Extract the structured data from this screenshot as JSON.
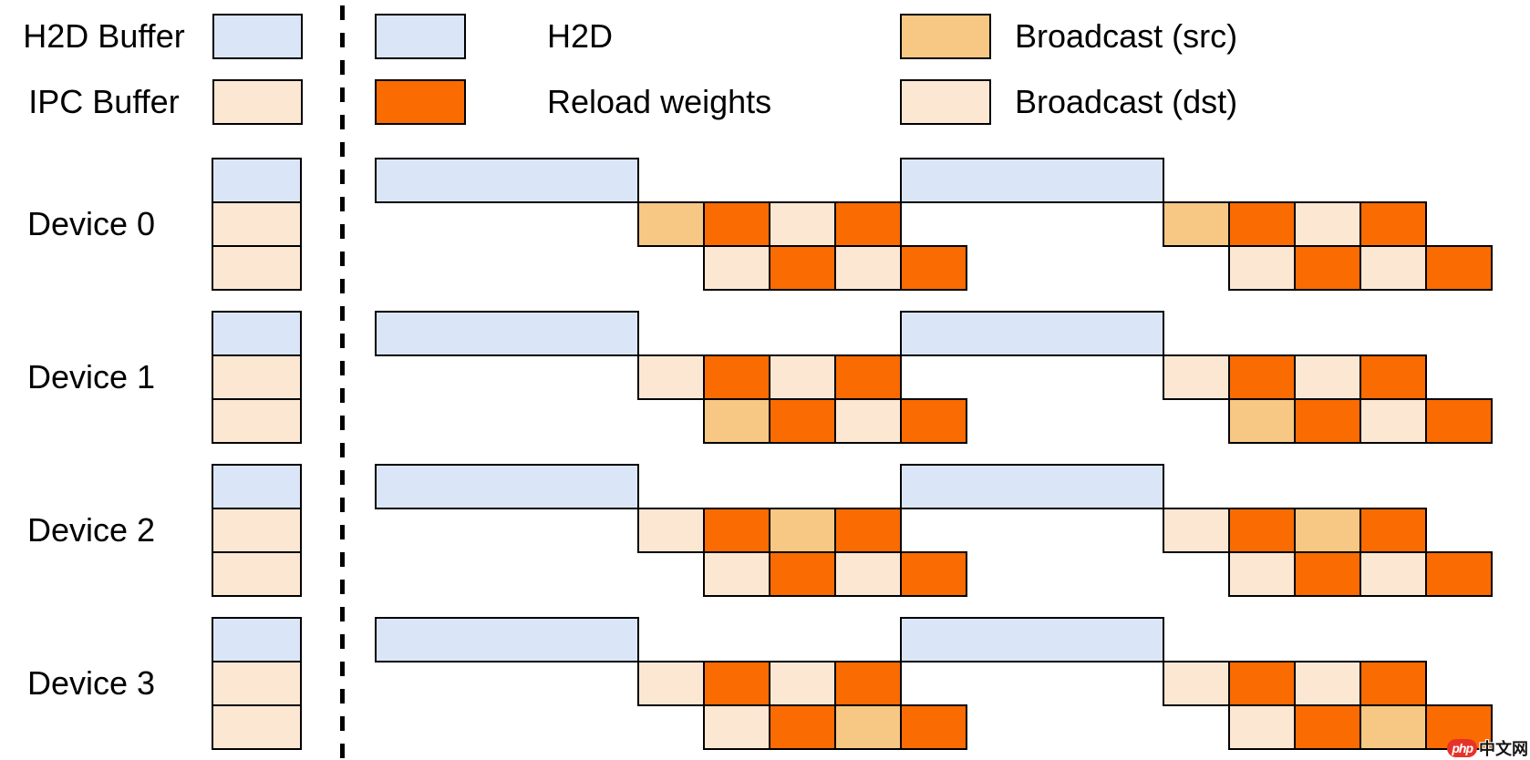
{
  "colors": {
    "h2d": "#dae6f7",
    "ipc": "#fce7d3",
    "reload": "#fa6b02",
    "broadcast_src": "#f7c784",
    "broadcast_dst": "#fce7d3",
    "border": "#000000",
    "background": "#ffffff",
    "watermark_red": "#e6332a"
  },
  "legend": {
    "left": [
      {
        "label": "H2D Buffer",
        "color_key": "h2d"
      },
      {
        "label": "IPC Buffer",
        "color_key": "ipc"
      }
    ],
    "middle": [
      {
        "label": "H2D",
        "color_key": "h2d"
      },
      {
        "label": "Reload weights",
        "color_key": "reload"
      }
    ],
    "right": [
      {
        "label": "Broadcast (src)",
        "color_key": "broadcast_src"
      },
      {
        "label": "Broadcast (dst)",
        "color_key": "broadcast_dst"
      }
    ]
  },
  "devices": [
    {
      "label": "Device 0",
      "buffer_stack": [
        "h2d",
        "ipc",
        "ipc"
      ],
      "mid_pattern": [
        "broadcast_src",
        "reload",
        "broadcast_dst",
        "reload"
      ],
      "bottom_pattern": [
        "broadcast_dst",
        "reload",
        "broadcast_dst",
        "reload"
      ]
    },
    {
      "label": "Device 1",
      "buffer_stack": [
        "h2d",
        "ipc",
        "ipc"
      ],
      "mid_pattern": [
        "broadcast_dst",
        "reload",
        "broadcast_dst",
        "reload"
      ],
      "bottom_pattern": [
        "broadcast_src",
        "reload",
        "broadcast_dst",
        "reload"
      ]
    },
    {
      "label": "Device 2",
      "buffer_stack": [
        "h2d",
        "ipc",
        "ipc"
      ],
      "mid_pattern": [
        "broadcast_dst",
        "reload",
        "broadcast_src",
        "reload"
      ],
      "bottom_pattern": [
        "broadcast_dst",
        "reload",
        "broadcast_dst",
        "reload"
      ]
    },
    {
      "label": "Device 3",
      "buffer_stack": [
        "h2d",
        "ipc",
        "ipc"
      ],
      "mid_pattern": [
        "broadcast_dst",
        "reload",
        "broadcast_dst",
        "reload"
      ],
      "bottom_pattern": [
        "broadcast_dst",
        "reload",
        "broadcast_src",
        "reload"
      ]
    }
  ],
  "rounds_per_device": 2,
  "watermark": {
    "badge_text": "php",
    "site_text": "中文网"
  }
}
